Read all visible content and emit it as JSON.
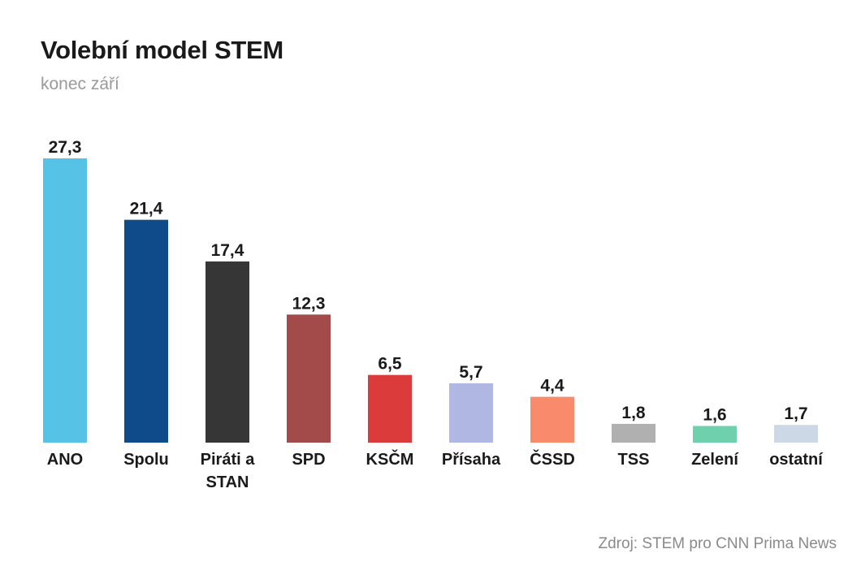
{
  "header": {
    "title": "Volební model STEM",
    "subtitle": "konec září"
  },
  "footer": {
    "source": "Zdroj: STEM pro CNN Prima News"
  },
  "chart_data": {
    "type": "bar",
    "title": "Volební model STEM",
    "subtitle": "konec září",
    "xlabel": "",
    "ylabel": "",
    "ylim": [
      0,
      27.3
    ],
    "grid": false,
    "categories": [
      [
        "ANO"
      ],
      [
        "Spolu"
      ],
      [
        "Piráti a",
        "STAN"
      ],
      [
        "SPD"
      ],
      [
        "KSČM"
      ],
      [
        "Přísaha"
      ],
      [
        "ČSSD"
      ],
      [
        "TSS"
      ],
      [
        "Zelení"
      ],
      [
        "ostatní"
      ]
    ],
    "values": [
      27.3,
      21.4,
      17.4,
      12.3,
      6.5,
      5.7,
      4.4,
      1.8,
      1.6,
      1.7
    ],
    "value_labels": [
      "27,3",
      "21,4",
      "17,4",
      "12,3",
      "6,5",
      "5,7",
      "4,4",
      "1,8",
      "1,6",
      "1,7"
    ],
    "colors": [
      "#56c2e6",
      "#0f4a8a",
      "#363636",
      "#a34a4a",
      "#dc3b3b",
      "#b0b7e3",
      "#f98a6c",
      "#b0b0b0",
      "#6fd0ad",
      "#cdd8e6"
    ]
  }
}
